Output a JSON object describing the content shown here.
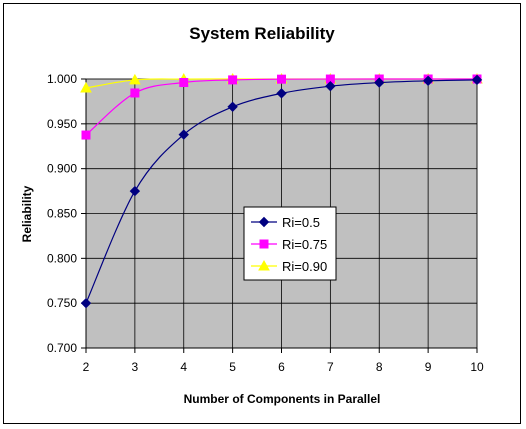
{
  "chart_data": {
    "type": "line",
    "title": "System Reliability",
    "xlabel": "Number of Components in Parallel",
    "ylabel": "Reliability",
    "x": [
      2,
      3,
      4,
      5,
      6,
      7,
      8,
      9,
      10
    ],
    "xticks": [
      "2",
      "3",
      "4",
      "5",
      "6",
      "7",
      "8",
      "9",
      "10"
    ],
    "ylim": [
      0.7,
      1.0
    ],
    "yticks": [
      "0.700",
      "0.750",
      "0.800",
      "0.850",
      "0.900",
      "0.950",
      "1.000"
    ],
    "ytick_values": [
      0.7,
      0.75,
      0.8,
      0.85,
      0.9,
      0.95,
      1.0
    ],
    "grid": true,
    "plot_background": "#c0c0c0",
    "legend_position": "center",
    "series": [
      {
        "name": "Ri=0.5",
        "color": "#000080",
        "marker": "diamond",
        "values": [
          0.75,
          0.875,
          0.938,
          0.969,
          0.984,
          0.992,
          0.996,
          0.998,
          0.999
        ]
      },
      {
        "name": "Ri=0.75",
        "color": "#ff00ff",
        "marker": "square",
        "values": [
          0.9375,
          0.9844,
          0.9961,
          0.999,
          0.9998,
          0.99994,
          0.99998,
          1.0,
          1.0
        ]
      },
      {
        "name": "Ri=0.90",
        "color": "#ffff00",
        "marker": "triangle",
        "values": [
          0.99,
          0.999,
          0.9999,
          1.0,
          1.0,
          1.0,
          1.0,
          1.0,
          1.0
        ]
      }
    ]
  }
}
